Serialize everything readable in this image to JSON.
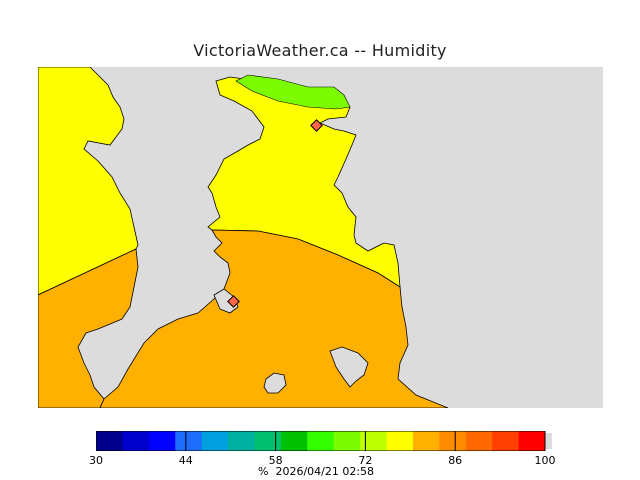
{
  "title": "VictoriaWeather.ca -- Humidity",
  "colors": {
    "land_gray": "#dcdcdc",
    "yellow": "#ffff00",
    "orange": "#ffb000",
    "green": "#7cfc00",
    "coast": "#000000",
    "marker_fill": "#ff6644"
  },
  "colorbar": {
    "colors": [
      "#00008b",
      "#0000cd",
      "#0000ff",
      "#1e6cff",
      "#00a0e0",
      "#00b0a0",
      "#00c070",
      "#00c000",
      "#33ff00",
      "#7cfc00",
      "#bfff00",
      "#ffff00",
      "#ffb000",
      "#ff8c00",
      "#ff6a00",
      "#ff4000",
      "#ff0000"
    ],
    "ticks": [
      "30",
      "44",
      "58",
      "72",
      "86",
      "100"
    ],
    "unit": "%",
    "timestamp": "2026/04/21 02:58"
  }
}
